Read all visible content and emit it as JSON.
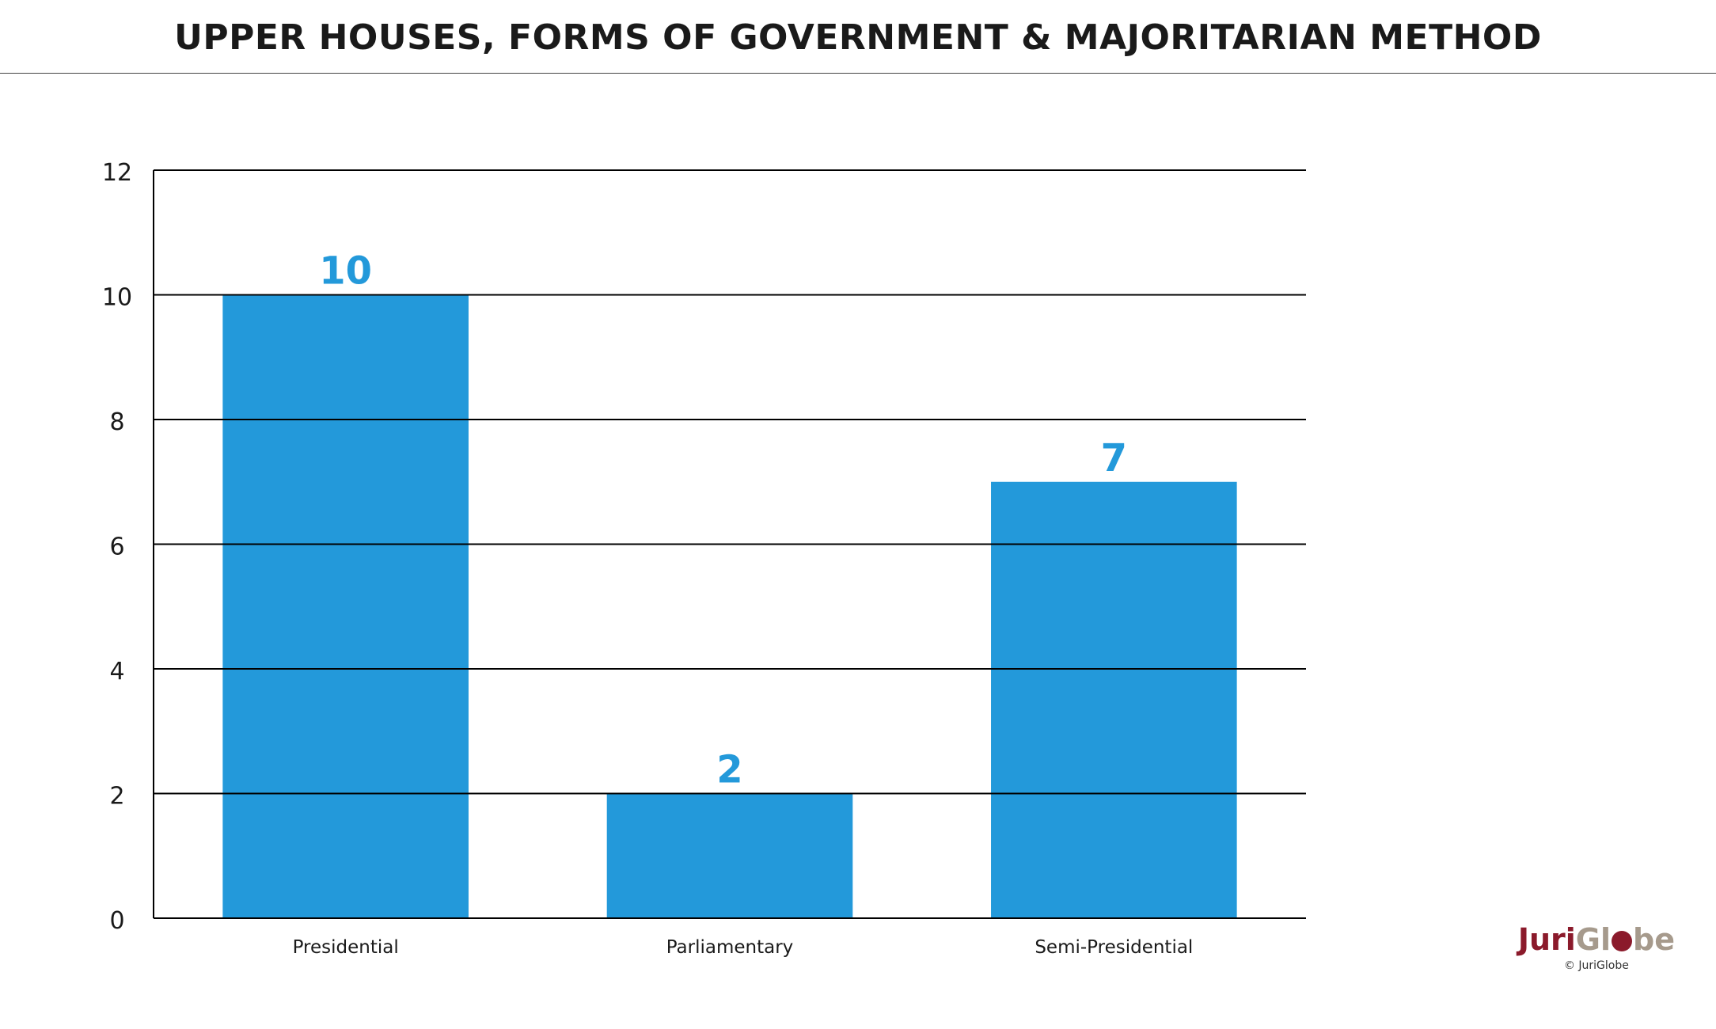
{
  "chart_data": {
    "type": "bar",
    "title": "UPPER HOUSES, FORMS OF GOVERNMENT & MAJORITARIAN METHOD",
    "categories": [
      "Presidential",
      "Parliamentary",
      "Semi-Presidential"
    ],
    "values": [
      10,
      2,
      7
    ],
    "data_labels": [
      "10",
      "2",
      "7"
    ],
    "xlabel": "",
    "ylabel": "",
    "ylim": [
      0,
      12
    ],
    "yticks": [
      0,
      2,
      4,
      6,
      8,
      10,
      12
    ],
    "ytick_labels": [
      "0",
      "2",
      "4",
      "6",
      "8",
      "10",
      "12"
    ],
    "grid": true,
    "legend": "none",
    "bar_color": "#2399da",
    "label_color": "#2399da",
    "grid_color": "#000000"
  },
  "logo": {
    "part1": "Juri",
    "part2": "Gl",
    "part3": "be",
    "copyright": "© JuriGlobe",
    "primary_color": "#8b1a2b",
    "secondary_color": "#a69a8c"
  }
}
